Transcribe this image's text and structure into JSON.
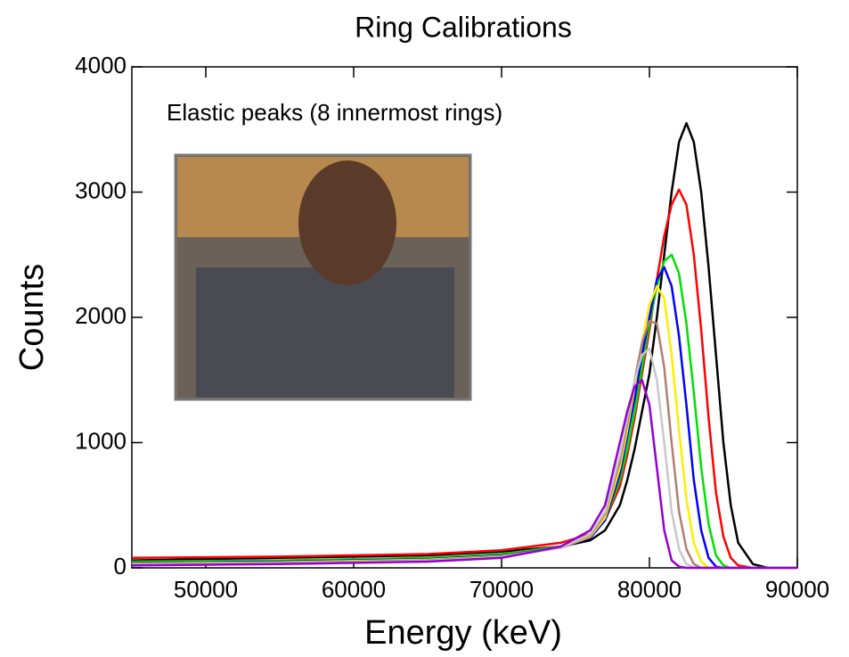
{
  "chart_data": {
    "type": "line",
    "title": "Ring Calibrations",
    "annotation": "Elastic peaks (8 innermost rings)",
    "x_label": "Energy (keV)",
    "y_label": "Counts",
    "x": [
      45000,
      50000,
      55000,
      60000,
      65000,
      70000,
      74000,
      76000,
      77000,
      78000,
      78500,
      79000,
      79500,
      80000,
      80500,
      81000,
      81500,
      82000,
      82500,
      83000,
      83500,
      84000,
      84500,
      85000,
      85500,
      86000,
      87000,
      88000,
      90000
    ],
    "series": [
      {
        "color": "#000000",
        "values": [
          60,
          70,
          80,
          90,
          100,
          130,
          170,
          220,
          300,
          500,
          700,
          950,
          1250,
          1550,
          2000,
          2500,
          3000,
          3400,
          3550,
          3400,
          3000,
          2400,
          1700,
          1000,
          500,
          200,
          30,
          0,
          0
        ]
      },
      {
        "color": "#ff0000",
        "values": [
          80,
          85,
          90,
          100,
          110,
          140,
          200,
          270,
          380,
          650,
          900,
          1200,
          1550,
          1900,
          2300,
          2650,
          2900,
          3020,
          2900,
          2500,
          1900,
          1200,
          600,
          250,
          80,
          20,
          0,
          0,
          0
        ]
      },
      {
        "color": "#00e000",
        "values": [
          50,
          55,
          60,
          70,
          80,
          110,
          170,
          250,
          380,
          700,
          950,
          1250,
          1600,
          1950,
          2250,
          2450,
          2500,
          2350,
          1950,
          1400,
          800,
          350,
          100,
          20,
          0,
          0,
          0,
          0,
          0
        ]
      },
      {
        "color": "#0000ff",
        "values": [
          40,
          45,
          50,
          60,
          70,
          100,
          160,
          240,
          380,
          750,
          1050,
          1350,
          1700,
          2000,
          2300,
          2400,
          2250,
          1850,
          1300,
          700,
          300,
          80,
          10,
          0,
          0,
          0,
          0,
          0,
          0
        ]
      },
      {
        "color": "#ffee00",
        "values": [
          35,
          40,
          45,
          55,
          65,
          95,
          160,
          250,
          400,
          800,
          1100,
          1450,
          1800,
          2100,
          2250,
          2150,
          1700,
          1100,
          550,
          200,
          50,
          0,
          0,
          0,
          0,
          0,
          0,
          0,
          0
        ]
      },
      {
        "color": "#b08070",
        "values": [
          30,
          35,
          40,
          50,
          60,
          90,
          160,
          260,
          430,
          850,
          1150,
          1500,
          1800,
          1970,
          1950,
          1600,
          1000,
          450,
          150,
          30,
          0,
          0,
          0,
          0,
          0,
          0,
          0,
          0,
          0
        ]
      },
      {
        "color": "#c8c8c8",
        "values": [
          25,
          30,
          35,
          45,
          55,
          85,
          160,
          270,
          450,
          900,
          1200,
          1500,
          1700,
          1750,
          1500,
          1000,
          450,
          150,
          30,
          0,
          0,
          0,
          0,
          0,
          0,
          0,
          0,
          0,
          0
        ]
      },
      {
        "color": "#9400d3",
        "values": [
          20,
          25,
          30,
          40,
          50,
          80,
          170,
          300,
          500,
          1000,
          1250,
          1450,
          1500,
          1300,
          800,
          300,
          60,
          10,
          0,
          0,
          0,
          0,
          0,
          0,
          0,
          0,
          0,
          0,
          0
        ]
      }
    ],
    "xlim": [
      45000,
      90000
    ],
    "xticks": [
      50000,
      60000,
      70000,
      80000,
      90000
    ],
    "ylim": [
      0,
      4000
    ],
    "yticks": [
      0,
      1000,
      2000,
      3000,
      4000
    ]
  }
}
